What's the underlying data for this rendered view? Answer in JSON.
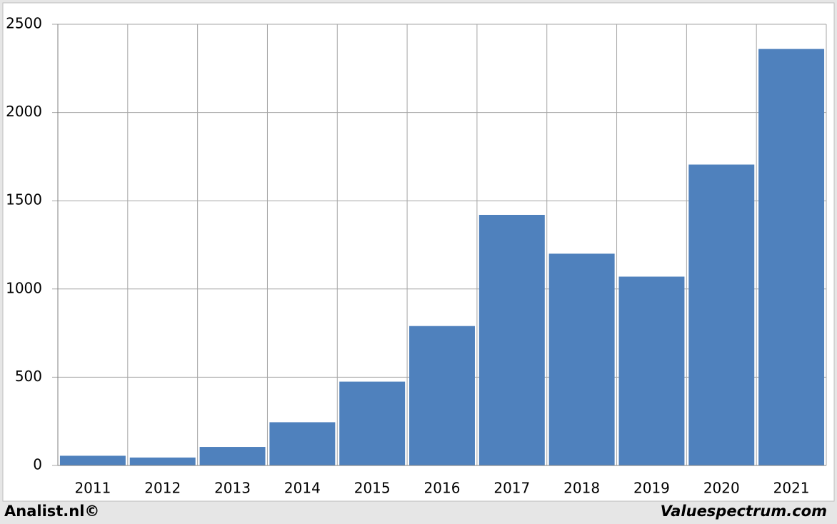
{
  "chart_data": {
    "type": "bar",
    "categories": [
      "2011",
      "2012",
      "2013",
      "2014",
      "2015",
      "2016",
      "2017",
      "2018",
      "2019",
      "2020",
      "2021"
    ],
    "values": [
      55,
      45,
      105,
      245,
      475,
      790,
      1420,
      1200,
      1070,
      1705,
      2360
    ],
    "color": "#4f81bd",
    "ylim": [
      0,
      2500
    ],
    "yticks": [
      0,
      500,
      1000,
      1500,
      2000,
      2500
    ],
    "grid": true,
    "footer_left": "Analist.nl©",
    "footer_right": "Valuespectrum.com"
  }
}
